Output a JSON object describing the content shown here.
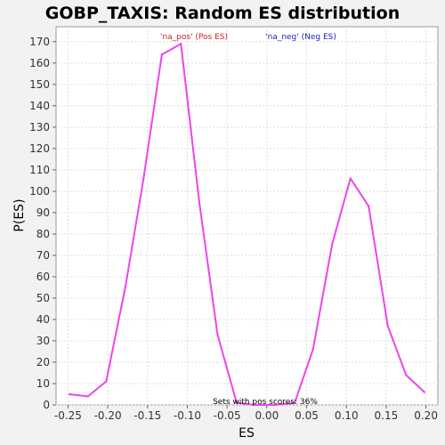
{
  "chart_data": {
    "type": "line",
    "title": "GOBP_TAXIS: Random ES distribution",
    "xlabel": "ES",
    "ylabel": "P(ES)",
    "xlim": [
      -0.265,
      0.215
    ],
    "ylim": [
      0,
      177
    ],
    "x_ticks": [
      -0.25,
      -0.2,
      -0.15,
      -0.1,
      -0.05,
      0.0,
      0.05,
      0.1,
      0.15,
      0.2
    ],
    "x_tick_labels": [
      "-0.25",
      "-0.20",
      "-0.15",
      "-0.10",
      "-0.05",
      "0.00",
      "0.05",
      "0.10",
      "0.15",
      "0.20"
    ],
    "y_ticks": [
      0,
      10,
      20,
      30,
      40,
      50,
      60,
      70,
      80,
      90,
      100,
      110,
      120,
      130,
      140,
      150,
      160,
      170
    ],
    "grid": true,
    "legend": [
      {
        "label": "'na_pos' (Pos ES)",
        "color": "#cc2222"
      },
      {
        "label": "'na_neg' (Neg ES)",
        "color": "#2222bb"
      }
    ],
    "series": [
      {
        "color": "#ee44ee",
        "x": [
          -0.248,
          -0.225,
          -0.202,
          -0.178,
          -0.155,
          -0.132,
          -0.108,
          -0.085,
          -0.062,
          -0.038,
          -0.015,
          0.01,
          0.035,
          0.058,
          0.082,
          0.105,
          0.128,
          0.152,
          0.175,
          0.198
        ],
        "y": [
          5,
          4,
          11,
          55,
          106,
          164,
          169,
          95,
          33,
          1,
          0,
          0,
          1,
          26,
          75,
          106,
          93,
          37,
          14,
          6
        ]
      }
    ],
    "annotation": "Sets with pos scores: 36%"
  }
}
